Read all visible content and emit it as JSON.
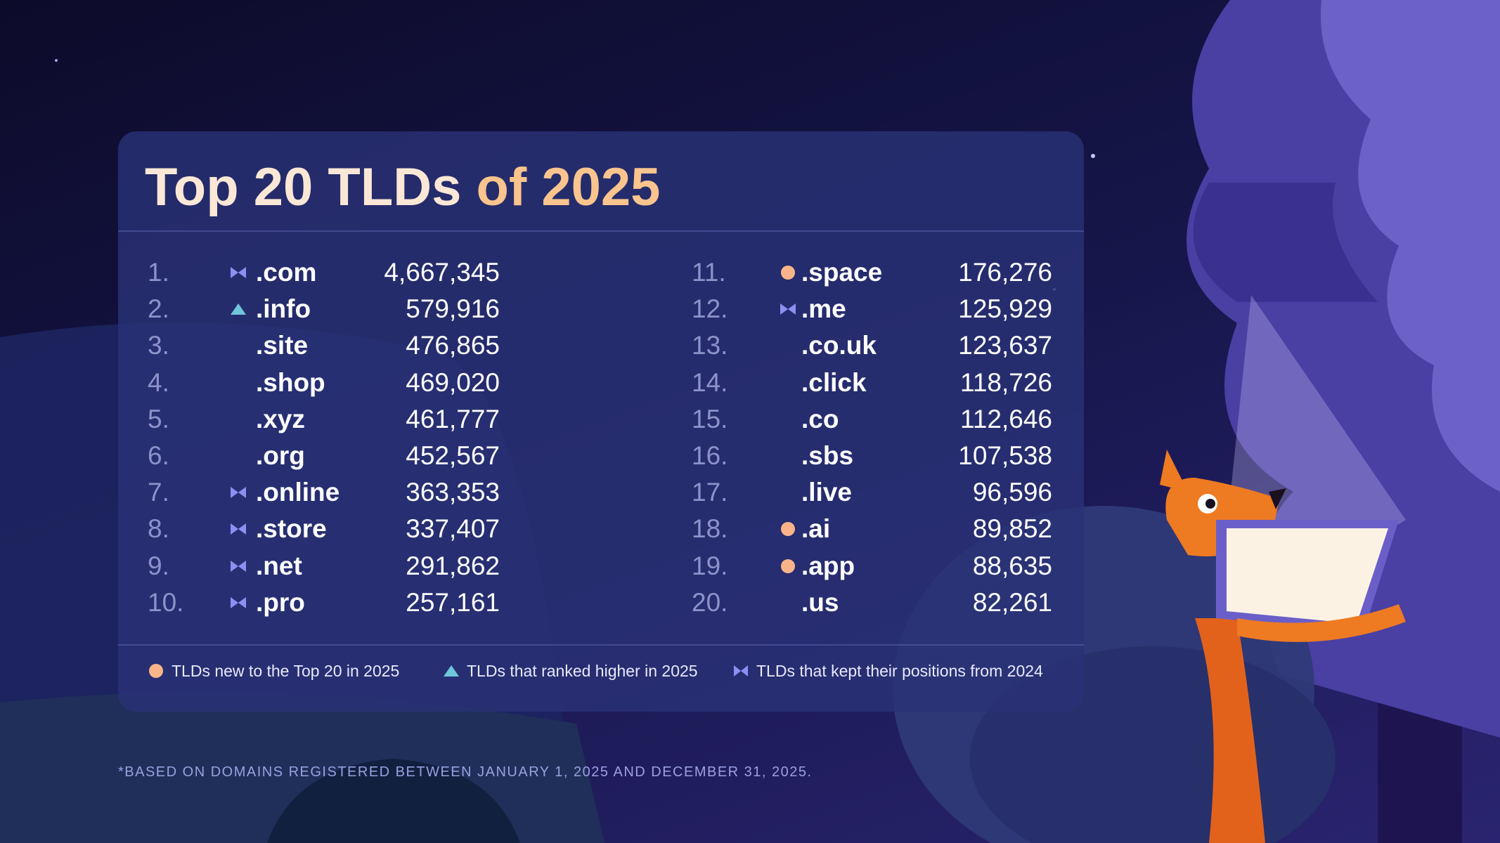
{
  "chart_data": {
    "type": "table",
    "title": {
      "main": "Top 20 TLDs ",
      "accent": "of 2025"
    },
    "columns": [
      [
        {
          "rank": "1.",
          "tld": ".com",
          "count": "4,667,345",
          "status": "same"
        },
        {
          "rank": "2.",
          "tld": ".info",
          "count": "579,916",
          "status": "up"
        },
        {
          "rank": "3.",
          "tld": ".site",
          "count": "476,865",
          "status": "none"
        },
        {
          "rank": "4.",
          "tld": ".shop",
          "count": "469,020",
          "status": "none"
        },
        {
          "rank": "5.",
          "tld": ".xyz",
          "count": "461,777",
          "status": "none"
        },
        {
          "rank": "6.",
          "tld": ".org",
          "count": "452,567",
          "status": "none"
        },
        {
          "rank": "7.",
          "tld": ".online",
          "count": "363,353",
          "status": "same"
        },
        {
          "rank": "8.",
          "tld": ".store",
          "count": "337,407",
          "status": "same"
        },
        {
          "rank": "9.",
          "tld": ".net",
          "count": "291,862",
          "status": "same"
        },
        {
          "rank": "10.",
          "tld": ".pro",
          "count": "257,161",
          "status": "same"
        }
      ],
      [
        {
          "rank": "11.",
          "tld": ".space",
          "count": "176,276",
          "status": "new"
        },
        {
          "rank": "12.",
          "tld": ".me",
          "count": "125,929",
          "status": "same"
        },
        {
          "rank": "13.",
          "tld": ".co.uk",
          "count": "123,637",
          "status": "none"
        },
        {
          "rank": "14.",
          "tld": ".click",
          "count": "118,726",
          "status": "none"
        },
        {
          "rank": "15.",
          "tld": ".co",
          "count": "112,646",
          "status": "none"
        },
        {
          "rank": "16.",
          "tld": ".sbs",
          "count": "107,538",
          "status": "none"
        },
        {
          "rank": "17.",
          "tld": ".live",
          "count": "96,596",
          "status": "none"
        },
        {
          "rank": "18.",
          "tld": ".ai",
          "count": "89,852",
          "status": "new"
        },
        {
          "rank": "19.",
          "tld": ".app",
          "count": "88,635",
          "status": "new"
        },
        {
          "rank": "20.",
          "tld": ".us",
          "count": "82,261",
          "status": "none"
        }
      ]
    ],
    "legend": {
      "new": "TLDs new to the Top 20 in 2025",
      "up": "TLDs that ranked higher in 2025",
      "same": "TLDs that kept their positions from 2024"
    },
    "footnote": "*BASED ON DOMAINS REGISTERED BETWEEN JANUARY 1, 2025 AND DECEMBER 31, 2025."
  },
  "colors": {
    "new": "#f9b48a",
    "up": "#6fc6da",
    "same": "#8f8ef2"
  },
  "icons": {
    "new": "circle-icon",
    "up": "triangle-up-icon",
    "same": "bowtie-icon"
  }
}
